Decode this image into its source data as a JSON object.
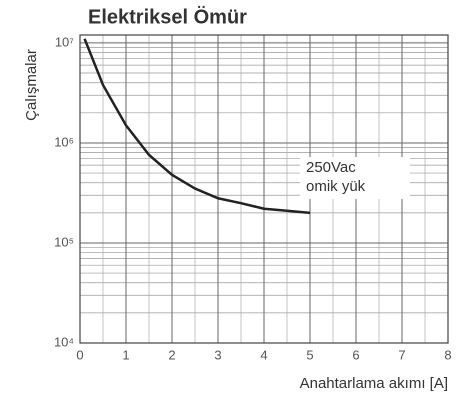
{
  "chart_data": {
    "type": "line",
    "title": "Elektriksel Ömür",
    "ylabel": "Çalışmalar",
    "xlabel": "Anahtarlama akımı [A]",
    "annotation": [
      "250Vac",
      "omik yük"
    ],
    "log_y": true,
    "grid": true,
    "color": "#222",
    "x": [
      0.1,
      0.5,
      1,
      1.5,
      2,
      2.5,
      3,
      3.5,
      4,
      4.5,
      5
    ],
    "values": [
      11000000,
      3800000,
      1500000,
      760000,
      480000,
      350000,
      280000,
      250000,
      220000,
      210000,
      200000
    ],
    "xlim": [
      0,
      8
    ],
    "xticks": [
      0,
      1,
      2,
      3,
      4,
      5,
      6,
      7,
      8
    ],
    "ylim": [
      10000,
      12000000
    ],
    "yticks": [
      {
        "value": 10000,
        "label": "10⁴"
      },
      {
        "value": 100000,
        "label": "10⁵"
      },
      {
        "value": 1000000,
        "label": "10⁶"
      },
      {
        "value": 10000000,
        "label": "10⁷"
      }
    ]
  }
}
